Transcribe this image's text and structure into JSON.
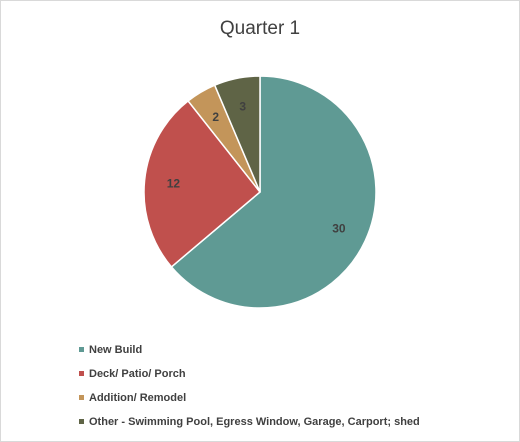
{
  "chart_data": {
    "type": "pie",
    "title": "Quarter 1",
    "categories": [
      "New Build",
      "Deck/ Patio/ Porch",
      "Addition/ Remodel",
      "Other - Swimming Pool, Egress Window, Garage, Carport; shed"
    ],
    "values": [
      30,
      12,
      2,
      3
    ],
    "colors": [
      "#5f9a94",
      "#c0504d",
      "#c3955a",
      "#5f6446"
    ],
    "legend_position": "bottom-left"
  }
}
